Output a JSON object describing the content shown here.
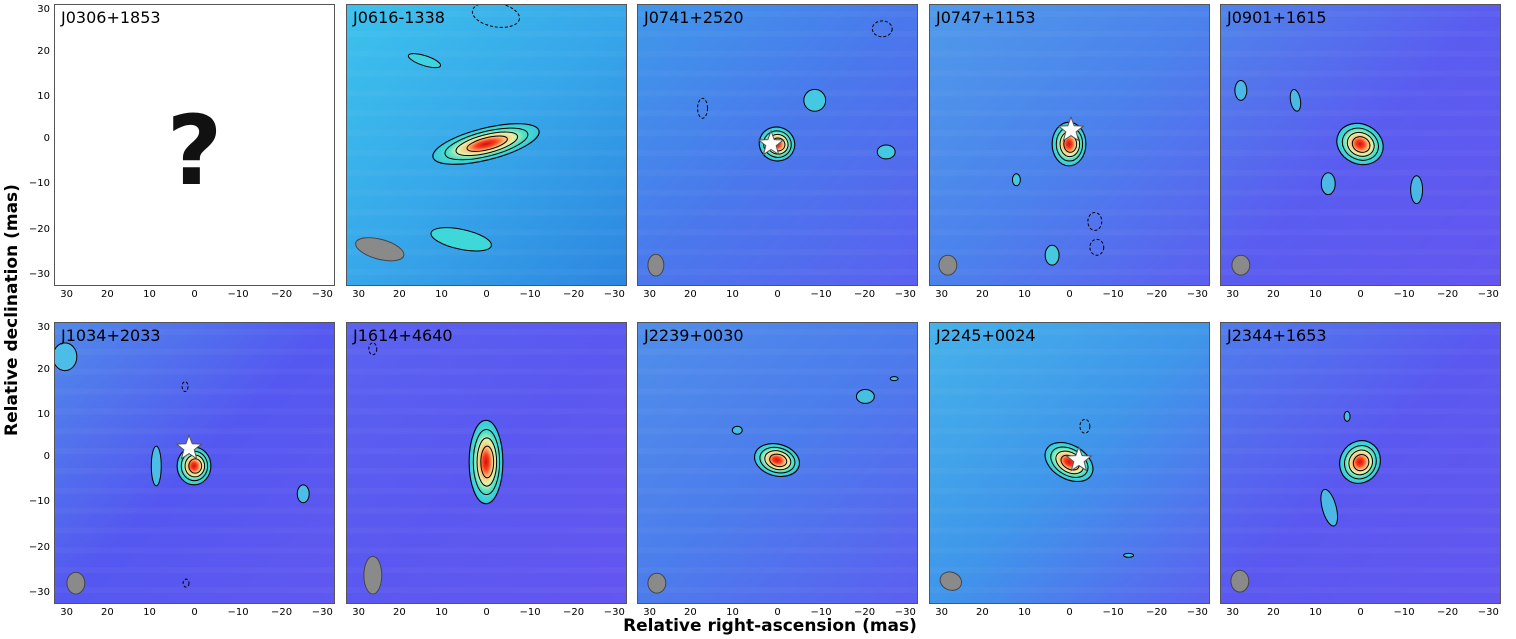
{
  "figure": {
    "ylabel": "Relative declination (mas)",
    "xlabel": "Relative right-ascension (mas)",
    "xticks": [
      "30",
      "20",
      "10",
      "0",
      "−10",
      "−20",
      "−30"
    ],
    "yticks": [
      "30",
      "20",
      "10",
      "0",
      "−10",
      "−20",
      "−30"
    ]
  },
  "panels": [
    {
      "label": "J0306+1853",
      "placeholder": "?"
    },
    {
      "label": "J0616-1338"
    },
    {
      "label": "J0741+2520"
    },
    {
      "label": "J0747+1153"
    },
    {
      "label": "J0901+1615"
    },
    {
      "label": "J1034+2033"
    },
    {
      "label": "J1614+4640"
    },
    {
      "label": "J2239+0030"
    },
    {
      "label": "J2245+0024"
    },
    {
      "label": "J2344+1653"
    }
  ],
  "colors": {
    "background_map": "#5a5cf0",
    "peak": "#e02020",
    "beam": "#888888",
    "contour": "#000000"
  }
}
